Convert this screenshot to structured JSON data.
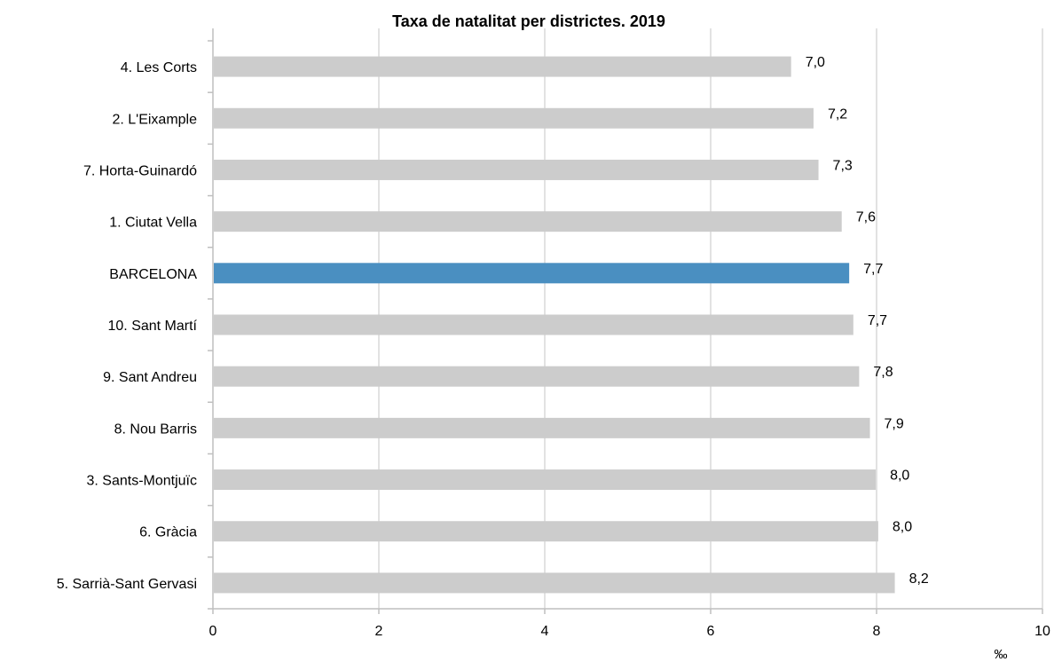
{
  "chart_data": {
    "type": "bar",
    "orientation": "horizontal",
    "title": "Taxa de natalitat per districtes. 2019",
    "unit_label": "‰",
    "categories": [
      "4. Les Corts",
      "2. L'Eixample",
      "7. Horta-Guinardó",
      "1. Ciutat Vella",
      "BARCELONA",
      "10. Sant Martí",
      "9. Sant Andreu",
      "8. Nou Barris",
      "3. Sants-Montjuïc",
      "6. Gràcia",
      "5. Sarrià-Sant Gervasi"
    ],
    "values": [
      6.97,
      7.24,
      7.3,
      7.58,
      7.67,
      7.72,
      7.79,
      7.92,
      7.99,
      8.02,
      8.22
    ],
    "value_labels": [
      "7,0",
      "7,2",
      "7,3",
      "7,6",
      "7,7",
      "7,7",
      "7,8",
      "7,9",
      "8,0",
      "8,0",
      "8,2"
    ],
    "highlight_category": "BARCELONA",
    "xlim": [
      0,
      10
    ],
    "xticks": [
      0,
      2,
      4,
      6,
      8,
      10
    ],
    "grid": true,
    "legend": "none",
    "colors": {
      "bar": "#cccccc",
      "highlight": "#4a8fc1",
      "grid": "#d9d9d9"
    }
  }
}
